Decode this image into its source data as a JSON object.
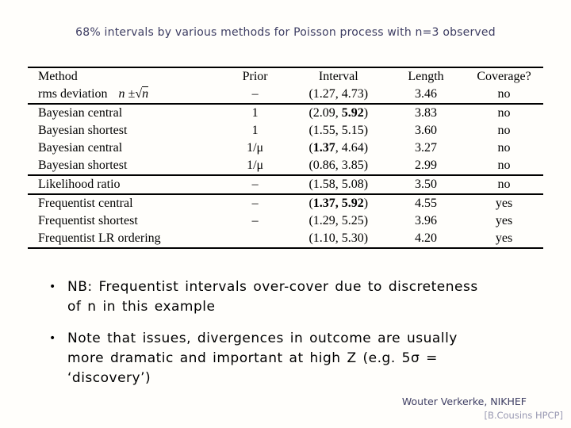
{
  "title": "68% intervals by various methods for Poisson process with n=3 observed",
  "table": {
    "headers": [
      "Method",
      "Prior",
      "Interval",
      "Length",
      "Coverage?"
    ],
    "sections": [
      {
        "rows": [
          {
            "method": "rms deviation",
            "method_math": {
              "pre": "n ±",
              "sqrt_of": "n"
            },
            "prior": "–",
            "interval": {
              "lo": "1.27",
              "hi": "4.73",
              "bold": "none"
            },
            "length": "3.46",
            "coverage": "no"
          }
        ]
      },
      {
        "rows": [
          {
            "method": "Bayesian central",
            "prior": "1",
            "interval": {
              "lo": "2.09",
              "hi": "5.92",
              "bold": "hi"
            },
            "length": "3.83",
            "coverage": "no"
          },
          {
            "method": "Bayesian shortest",
            "prior": "1",
            "interval": {
              "lo": "1.55",
              "hi": "5.15",
              "bold": "none"
            },
            "length": "3.60",
            "coverage": "no"
          },
          {
            "method": "Bayesian central",
            "prior": "1/μ",
            "interval": {
              "lo": "1.37",
              "hi": "4.64",
              "bold": "lo"
            },
            "length": "3.27",
            "coverage": "no"
          },
          {
            "method": "Bayesian shortest",
            "prior": "1/μ",
            "interval": {
              "lo": "0.86",
              "hi": "3.85",
              "bold": "none"
            },
            "length": "2.99",
            "coverage": "no"
          }
        ]
      },
      {
        "rows": [
          {
            "method": "Likelihood ratio",
            "prior": "–",
            "interval": {
              "lo": "1.58",
              "hi": "5.08",
              "bold": "none"
            },
            "length": "3.50",
            "coverage": "no"
          }
        ]
      },
      {
        "rows": [
          {
            "method": "Frequentist central",
            "prior": "–",
            "interval": {
              "lo": "1.37",
              "hi": "5.92",
              "bold": "both"
            },
            "length": "4.55",
            "coverage": "yes"
          },
          {
            "method": "Frequentist shortest",
            "prior": "–",
            "interval": {
              "lo": "1.29",
              "hi": "5.25",
              "bold": "none"
            },
            "length": "3.96",
            "coverage": "yes"
          },
          {
            "method": "Frequentist LR ordering",
            "prior": "",
            "interval": {
              "lo": "1.10",
              "hi": "5.30",
              "bold": "none"
            },
            "length": "4.20",
            "coverage": "yes"
          }
        ]
      }
    ]
  },
  "bullets": [
    {
      "marker": "•",
      "lines": [
        "NB: Frequentist intervals over-cover due to discreteness",
        "of n in this example"
      ]
    },
    {
      "marker": "•",
      "lines": [
        "Note that issues, divergences in outcome are usually",
        "more dramatic and important at high Z (e.g. 5σ =",
        "‘discovery’)"
      ]
    }
  ],
  "footer": {
    "author": "Wouter Verkerke, NIKHEF",
    "reference": "[B.Cousins HPCP]"
  },
  "colors": {
    "title_text": "#3e3e63",
    "body_text": "#000000",
    "reference_text": "#9898b2",
    "table_rule": "#000000",
    "background": "#fffefb"
  }
}
